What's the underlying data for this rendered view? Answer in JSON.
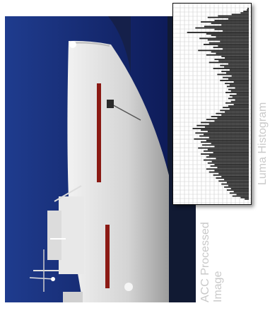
{
  "labels": {
    "histogram": "Luma Histogram",
    "processed_line1": "ACC Processed",
    "processed_line2": "Image"
  },
  "colors": {
    "sky": "#0d1f63",
    "hull": "#dcdcdc",
    "hull_stripe": "#8b1a14",
    "water": "#111a33",
    "histogram_bar": "#222222",
    "histogram_grid": "#cfcfcf",
    "label": "#c9c9c9"
  },
  "chart_data": {
    "type": "bar",
    "orientation": "horizontal",
    "title": "",
    "xlabel": "",
    "ylabel": "",
    "grid": true,
    "bins": 128,
    "luma_range": [
      0,
      255
    ],
    "xlim": [
      0,
      1
    ],
    "values": [
      0.02,
      0.03,
      0.08,
      0.12,
      0.25,
      0.45,
      0.6,
      0.3,
      0.5,
      0.7,
      0.55,
      0.4,
      0.65,
      0.78,
      0.5,
      0.38,
      0.9,
      0.62,
      0.55,
      0.48,
      0.72,
      0.6,
      0.42,
      0.58,
      0.66,
      0.45,
      0.52,
      0.38,
      0.74,
      0.55,
      0.48,
      0.62,
      0.4,
      0.35,
      0.5,
      0.44,
      0.58,
      0.3,
      0.42,
      0.36,
      0.52,
      0.28,
      0.4,
      0.33,
      0.46,
      0.25,
      0.38,
      0.3,
      0.42,
      0.22,
      0.35,
      0.28,
      0.32,
      0.2,
      0.3,
      0.26,
      0.34,
      0.18,
      0.28,
      0.24,
      0.3,
      0.2,
      0.26,
      0.34,
      0.22,
      0.3,
      0.38,
      0.28,
      0.42,
      0.35,
      0.48,
      0.4,
      0.55,
      0.46,
      0.62,
      0.5,
      0.7,
      0.58,
      0.76,
      0.64,
      0.82,
      0.7,
      0.6,
      0.78,
      0.66,
      0.72,
      0.58,
      0.8,
      0.62,
      0.7,
      0.55,
      0.68,
      0.5,
      0.74,
      0.6,
      0.66,
      0.52,
      0.7,
      0.58,
      0.62,
      0.48,
      0.66,
      0.54,
      0.6,
      0.5,
      0.56,
      0.46,
      0.62,
      0.5,
      0.58,
      0.44,
      0.52,
      0.4,
      0.48,
      0.36,
      0.44,
      0.32,
      0.4,
      0.3,
      0.36,
      0.26,
      0.32,
      0.22,
      0.28,
      0.18,
      0.24,
      0.12,
      0.06
    ]
  }
}
